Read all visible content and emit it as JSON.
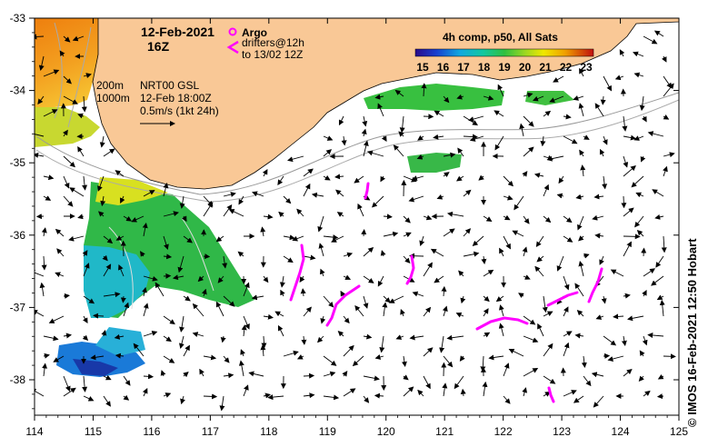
{
  "title": {
    "date": "12-Feb-2021",
    "time": "16Z"
  },
  "legend_argo": {
    "argo_label": "Argo",
    "drifters_label": "drifters@12h",
    "drifters_range": "to 13/02 12Z"
  },
  "depth_contours": [
    "200m",
    "1000m"
  ],
  "currents_info": {
    "source": "NRT00 GSL",
    "time": "12-Feb 18:00Z",
    "scale": "0.5m/s (1kt 24h)"
  },
  "colorbar": {
    "title": "4h comp, p50, All Sats",
    "ticks": [
      "15",
      "16",
      "17",
      "18",
      "19",
      "20",
      "21",
      "22",
      "23"
    ]
  },
  "axes": {
    "lon_ticks": [
      "114",
      "115",
      "116",
      "117",
      "118",
      "119",
      "120",
      "121",
      "122",
      "123",
      "124",
      "125"
    ],
    "lat_ticks": [
      "-33",
      "-34",
      "-35",
      "-36",
      "-37",
      "-38"
    ]
  },
  "credit": "© IMOS 16-Feb-2021 12:50 Hobart",
  "colors": {
    "land": "#f9c896",
    "drifter": "#ff00ff",
    "sst_cold": "#1a3d9e",
    "sst_warm": "#f07a10"
  }
}
